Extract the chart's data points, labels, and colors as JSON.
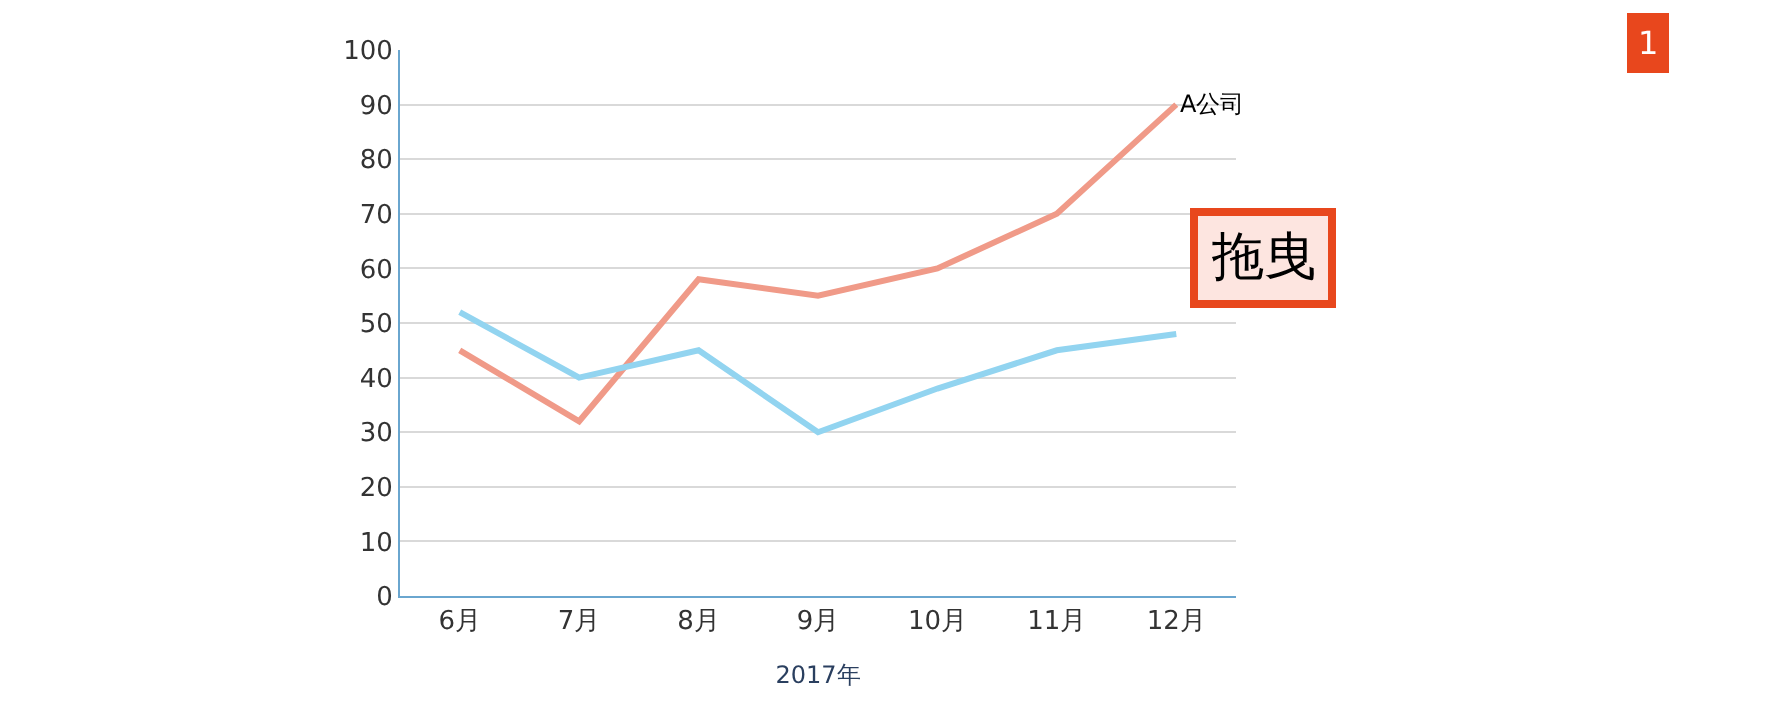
{
  "chart_data": {
    "type": "line",
    "xlabel": "2017年",
    "categories": [
      "6月",
      "7月",
      "8月",
      "9月",
      "10月",
      "11月",
      "12月"
    ],
    "series": [
      {
        "name": "A公司",
        "color": "#f09a88",
        "values": [
          45,
          32,
          58,
          55,
          60,
          70,
          90
        ]
      },
      {
        "color": "#92d4f0",
        "values": [
          52,
          40,
          45,
          30,
          38,
          45,
          48
        ]
      }
    ],
    "ylim": [
      0,
      100
    ],
    "yticks": [
      0,
      10,
      20,
      30,
      40,
      50,
      60,
      70,
      80,
      90,
      100
    ],
    "grid": "y",
    "legend": false,
    "marker": "none",
    "line_style": "solid",
    "annotations": [
      "拖曳",
      "1"
    ]
  }
}
